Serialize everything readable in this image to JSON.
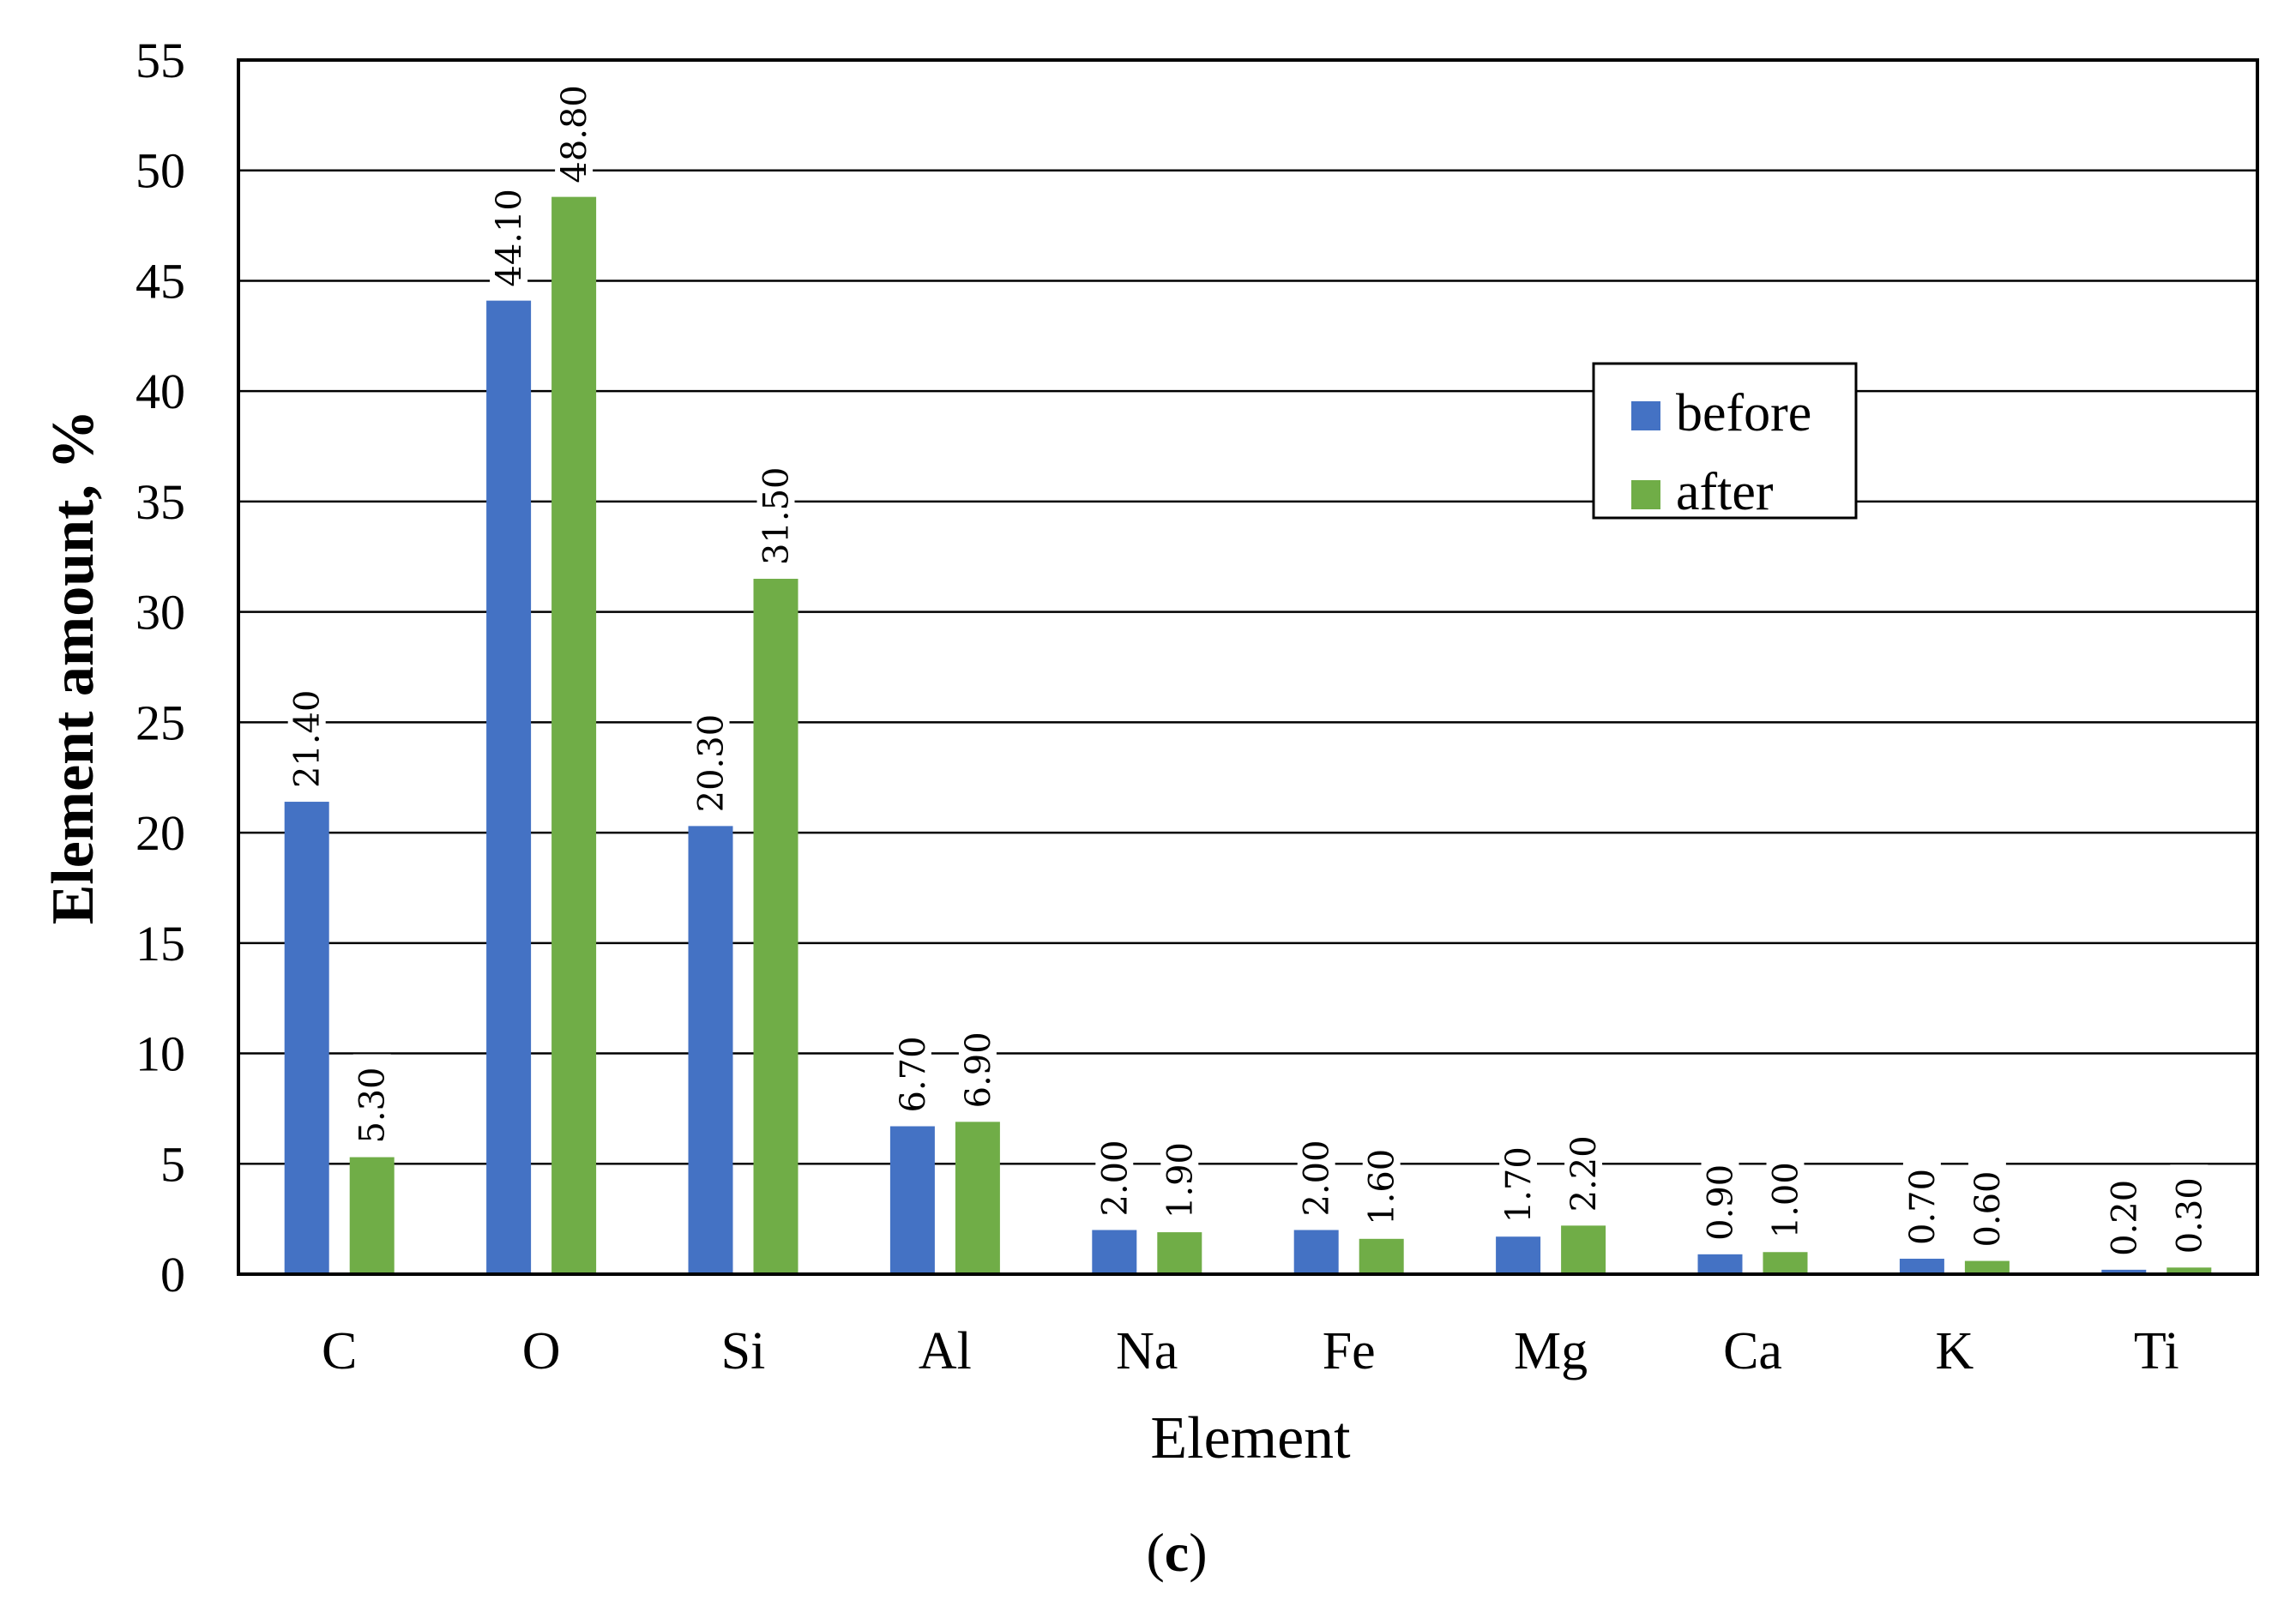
{
  "chart_data": {
    "type": "bar",
    "xlabel": "Element",
    "ylabel": "Element amount, %",
    "ylim": [
      0,
      55
    ],
    "yticks": [
      0,
      5,
      10,
      15,
      20,
      25,
      30,
      35,
      40,
      45,
      50,
      55
    ],
    "grid": "horizontal",
    "legend_position": "upper-right",
    "categories": [
      "C",
      "O",
      "Si",
      "Al",
      "Na",
      "Fe",
      "Mg",
      "Ca",
      "K",
      "Ti"
    ],
    "series": [
      {
        "name": "before",
        "color": "#4472C4",
        "values": [
          21.4,
          44.1,
          20.3,
          6.7,
          2.0,
          2.0,
          1.7,
          0.9,
          0.7,
          0.2
        ],
        "labels": [
          "21.40",
          "44.10",
          "20.30",
          "6.70",
          "2.00",
          "2.00",
          "1.70",
          "0.90",
          "0.70",
          "0.20"
        ]
      },
      {
        "name": "after",
        "color": "#70AD47",
        "values": [
          5.3,
          48.8,
          31.5,
          6.9,
          1.9,
          1.6,
          2.2,
          1.0,
          0.6,
          0.3
        ],
        "labels": [
          "5.30",
          "48.80",
          "31.50",
          "6.90",
          "1.90",
          "1.60",
          "2.20",
          "1.00",
          "0.60",
          "0.30"
        ]
      }
    ]
  },
  "caption": {
    "open": "(",
    "letter": "c",
    "close": ")"
  }
}
